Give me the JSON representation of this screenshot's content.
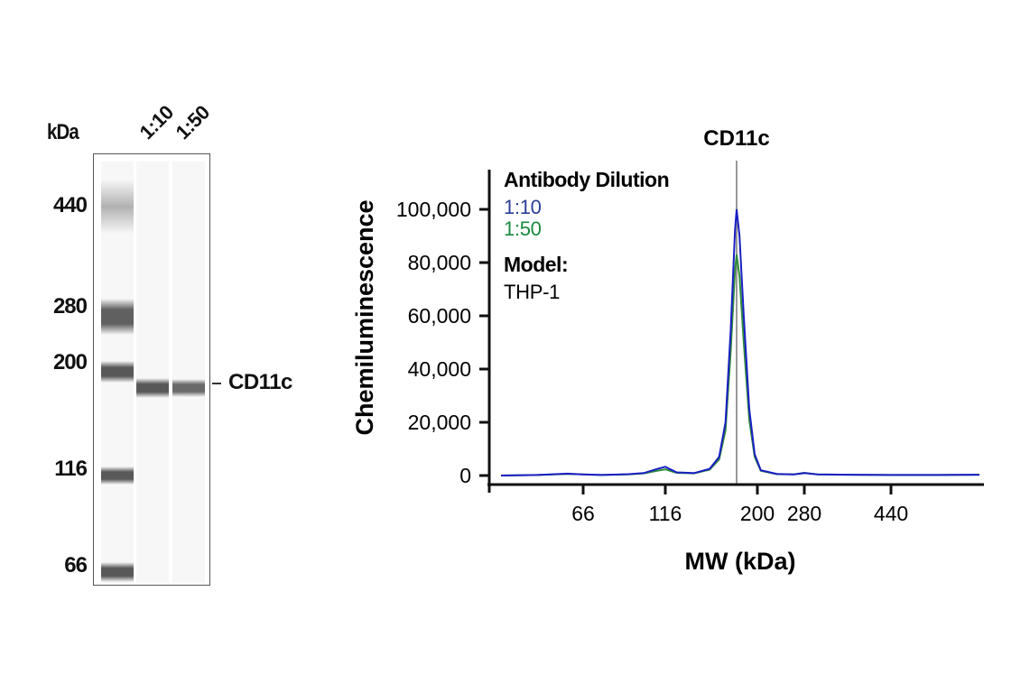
{
  "blot": {
    "kda_label": "kDa",
    "lanes": [
      {
        "label": "1:10"
      },
      {
        "label": "1:50"
      }
    ],
    "markers": [
      {
        "label": "440",
        "y": 228
      },
      {
        "label": "280",
        "y": 340
      },
      {
        "label": "200",
        "y": 402
      },
      {
        "label": "116",
        "y": 520
      },
      {
        "label": "66",
        "y": 627
      }
    ],
    "target_label": "CD11c"
  },
  "chart_data": {
    "type": "line",
    "title": "CD11c",
    "xlabel": "MW (kDa)",
    "ylabel": "Chemiluminescence",
    "ylim": [
      0,
      110000
    ],
    "yticks": [
      0,
      20000,
      40000,
      60000,
      80000,
      100000
    ],
    "ytick_labels": [
      "0",
      "20,000",
      "40,000",
      "60,000",
      "80,000",
      "100,000"
    ],
    "xticks": [
      66,
      116,
      200,
      280,
      440
    ],
    "xtick_labels": [
      "66",
      "116",
      "200",
      "280",
      "440"
    ],
    "grid": false,
    "legend": {
      "title": "Antibody Dilution",
      "position": "upper-left",
      "model_label": "Model:",
      "model_value": "THP-1"
    },
    "reference_line": {
      "label": "CD11c",
      "x_kda": 185
    },
    "series": [
      {
        "name": "1:10",
        "color": "#1a1fc4",
        "label_color": "#2b3f97",
        "points": [
          [
            40,
            0
          ],
          [
            50,
            200
          ],
          [
            60,
            700
          ],
          [
            66,
            400
          ],
          [
            75,
            200
          ],
          [
            90,
            500
          ],
          [
            100,
            900
          ],
          [
            110,
            2500
          ],
          [
            116,
            3300
          ],
          [
            125,
            1200
          ],
          [
            140,
            900
          ],
          [
            155,
            2500
          ],
          [
            165,
            7000
          ],
          [
            172,
            20000
          ],
          [
            178,
            55000
          ],
          [
            183,
            92000
          ],
          [
            185,
            100000
          ],
          [
            187,
            90000
          ],
          [
            190,
            60000
          ],
          [
            194,
            25000
          ],
          [
            198,
            8000
          ],
          [
            205,
            2000
          ],
          [
            230,
            600
          ],
          [
            260,
            400
          ],
          [
            280,
            900
          ],
          [
            300,
            400
          ],
          [
            350,
            300
          ],
          [
            440,
            200
          ],
          [
            600,
            200
          ],
          [
            800,
            300
          ]
        ]
      },
      {
        "name": "1:50",
        "color": "#2e8b3a",
        "label_color": "#1a8a3f",
        "points": [
          [
            40,
            0
          ],
          [
            50,
            200
          ],
          [
            60,
            600
          ],
          [
            66,
            400
          ],
          [
            75,
            200
          ],
          [
            90,
            400
          ],
          [
            100,
            800
          ],
          [
            110,
            1800
          ],
          [
            116,
            2300
          ],
          [
            125,
            1000
          ],
          [
            140,
            800
          ],
          [
            155,
            2200
          ],
          [
            165,
            6000
          ],
          [
            172,
            17000
          ],
          [
            178,
            47000
          ],
          [
            183,
            77000
          ],
          [
            185,
            83000
          ],
          [
            187,
            75000
          ],
          [
            190,
            50000
          ],
          [
            194,
            21000
          ],
          [
            198,
            7000
          ],
          [
            205,
            1800
          ],
          [
            230,
            500
          ],
          [
            260,
            400
          ],
          [
            280,
            1000
          ],
          [
            300,
            400
          ],
          [
            350,
            300
          ],
          [
            440,
            200
          ],
          [
            600,
            200
          ],
          [
            800,
            300
          ]
        ]
      }
    ]
  }
}
